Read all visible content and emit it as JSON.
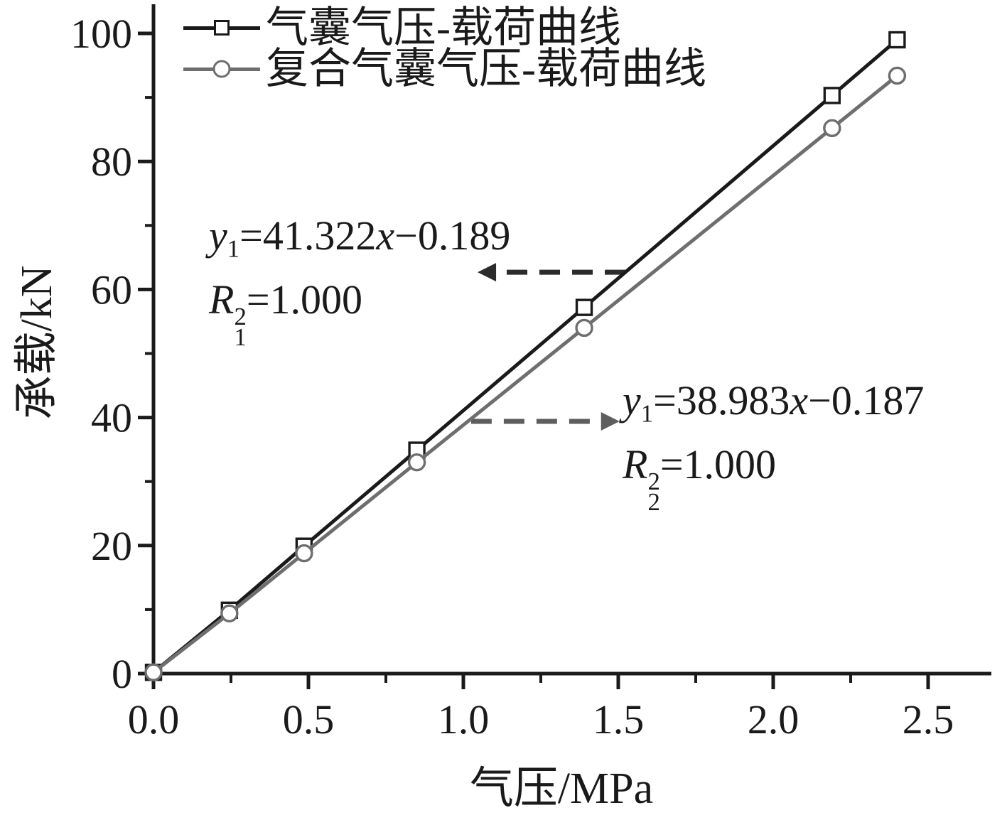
{
  "chart_data": {
    "type": "line",
    "title": "",
    "xlabel": "气压/MPa",
    "ylabel": "承载/kN",
    "xlim": [
      0,
      2.7
    ],
    "ylim": [
      0,
      105
    ],
    "grid": false,
    "legend_position": "top-left",
    "ink_color": "#1a1a1a",
    "x_axis": {
      "major_ticks": [
        0,
        0.5,
        1.0,
        1.5,
        2.0,
        2.5
      ],
      "tick_labels": [
        "0.0",
        "0.5",
        "1.0",
        "1.5",
        "2.0",
        "2.5"
      ],
      "minor_ticks": [
        0.25,
        0.75,
        1.25,
        1.75,
        2.25
      ]
    },
    "y_axis": {
      "major_ticks": [
        0,
        20,
        40,
        60,
        80,
        100
      ],
      "tick_labels": [
        "0",
        "20",
        "40",
        "60",
        "80",
        "100"
      ],
      "minor_ticks": [
        10,
        30,
        50,
        70,
        90
      ]
    },
    "series": [
      {
        "name": "气囊气压-载荷曲线",
        "marker": "square",
        "color": "#1a1a1a",
        "x": [
          0,
          0.245,
          0.486,
          0.85,
          1.39,
          2.19,
          2.4
        ],
        "y": [
          0.2,
          9.9,
          19.9,
          34.9,
          57.2,
          90.3,
          99.0
        ]
      },
      {
        "name": "复合气囊气压-载荷曲线",
        "marker": "circle",
        "color": "#6e6e6e",
        "x": [
          0,
          0.245,
          0.486,
          0.85,
          1.39,
          2.19,
          2.4
        ],
        "y": [
          0.2,
          9.4,
          18.8,
          33.0,
          54.0,
          85.2,
          93.4
        ]
      }
    ],
    "annotations": [
      {
        "text": "y1=41.322x−0.189",
        "r2_text": "R1²=1.000",
        "parts": {
          "v": "y",
          "vsub": "1",
          "mid": "=41.322",
          "x": "x",
          "tail": "−0.189"
        },
        "r2_parts": {
          "v": "R",
          "sub": "1",
          "sup": "2",
          "tail": "=1.000"
        },
        "arrow": {
          "x_from": 1.523,
          "y_from": 62.7,
          "x_to": 1.046,
          "y_to": 62.7,
          "direction": "left",
          "color": "#2b2b2b"
        }
      },
      {
        "text": "y1=38.983x−0.187",
        "r2_text": "R2²=1.000",
        "parts": {
          "v": "y",
          "vsub": "1",
          "mid": "=38.983",
          "x": "x",
          "tail": "−0.187"
        },
        "r2_parts": {
          "v": "R",
          "sub": "2",
          "sup": "2",
          "tail": "=1.000"
        },
        "arrow": {
          "x_from": 1.025,
          "y_from": 39.4,
          "x_to": 1.504,
          "y_to": 39.4,
          "direction": "right",
          "color": "#5e5e5e"
        }
      }
    ]
  }
}
